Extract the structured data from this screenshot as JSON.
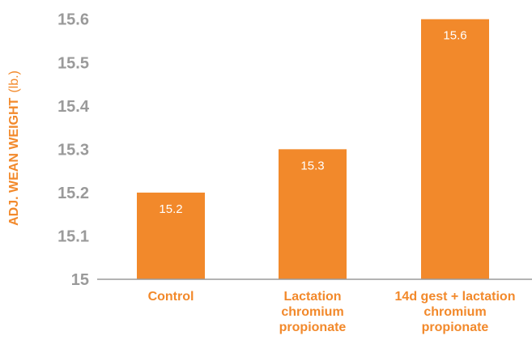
{
  "chart_data": {
    "type": "bar",
    "categories": [
      [
        "Control"
      ],
      [
        "Lactation",
        "chromium",
        "propionate"
      ],
      [
        "14d gest + lactation",
        "chromium",
        "propionate"
      ]
    ],
    "values": [
      15.2,
      15.3,
      15.6
    ],
    "data_labels": [
      "15.2",
      "15.3",
      "15.6"
    ],
    "ylabel": {
      "main": "ADJ. WEAN WEIGHT",
      "unit": "(lb.)"
    },
    "ylim": [
      15,
      15.62
    ],
    "yticks": [
      15,
      15.1,
      15.2,
      15.3,
      15.4,
      15.5,
      15.6
    ],
    "ytick_labels": [
      "15",
      "15.1",
      "15.2",
      "15.3",
      "15.4",
      "15.5",
      "15.6"
    ],
    "grid": false,
    "colors": {
      "bar": "#f2892b",
      "accent_text": "#f2892b",
      "tick_text": "#9a9a9a",
      "axis": "#9a9a9a",
      "data_label": "#ffffff"
    }
  }
}
